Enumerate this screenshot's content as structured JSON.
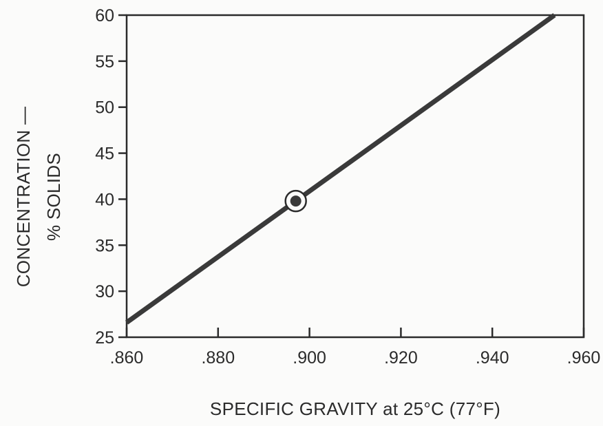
{
  "chart_data": {
    "type": "line",
    "title": "",
    "xlabel": "SPECIFIC GRAVITY at 25°C (77°F)",
    "ylabel_line1": "CONCENTRATION —",
    "ylabel_line2": "% SOLIDS",
    "xlim": [
      0.86,
      0.96
    ],
    "ylim": [
      25,
      60
    ],
    "x_ticks": [
      0.86,
      0.88,
      0.9,
      0.92,
      0.94,
      0.96
    ],
    "x_tick_labels": [
      ".860",
      ".880",
      ".900",
      ".920",
      ".940",
      ".960"
    ],
    "y_ticks": [
      25,
      30,
      35,
      40,
      45,
      50,
      55,
      60
    ],
    "y_tick_labels": [
      "25",
      "30",
      "35",
      "40",
      "45",
      "50",
      "55",
      "60"
    ],
    "grid": false,
    "series": [
      {
        "x": [
          0.86,
          0.9536
        ],
        "y": [
          26.6,
          60
        ]
      }
    ],
    "highlight_point": {
      "x": 0.897,
      "y": 39.8
    }
  },
  "colors": {
    "line": "#3a3a3a",
    "axis": "#2b2b2b",
    "background": "#fbfbfa"
  }
}
